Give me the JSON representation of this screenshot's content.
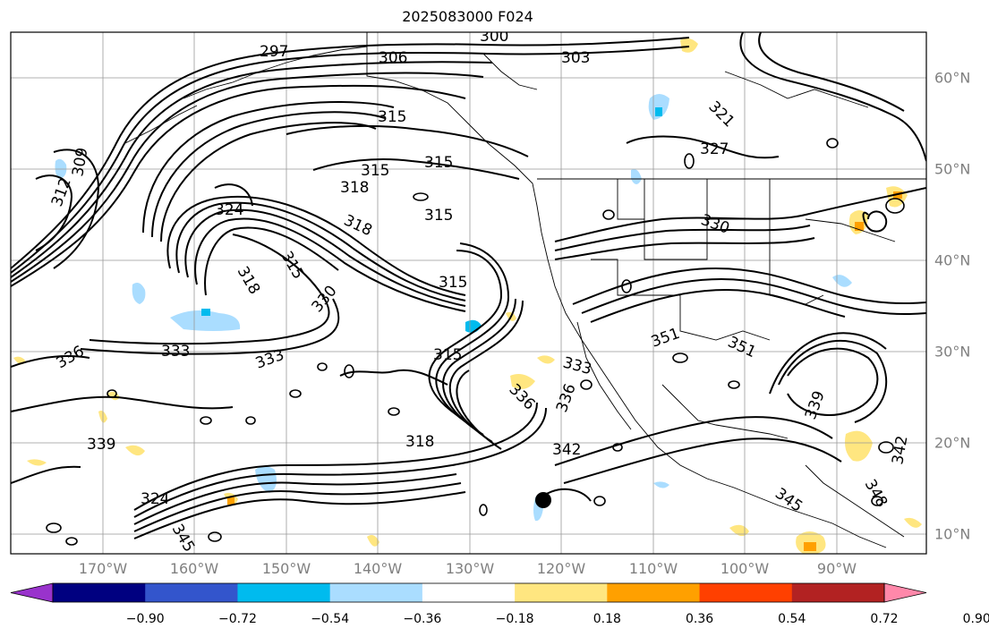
{
  "title": "2025083000 F024",
  "longitude_labels": [
    "170°W",
    "160°W",
    "150°W",
    "140°W",
    "130°W",
    "120°W",
    "110°W",
    "100°W",
    "90°W"
  ],
  "latitude_labels": [
    "60°N",
    "50°N",
    "40°N",
    "30°N",
    "20°N",
    "10°N"
  ],
  "contour_labels": [
    "297",
    "300",
    "303",
    "306",
    "309",
    "312",
    "315",
    "318",
    "321",
    "324",
    "327",
    "330",
    "333",
    "336",
    "339",
    "342",
    "345",
    "348",
    "351"
  ],
  "marker": {
    "name": "black-dot"
  },
  "colorbar": {
    "colors": [
      "#9933cc",
      "#000080",
      "#3355cc",
      "#00bbee",
      "#aaddff",
      "#ffffff",
      "#ffe680",
      "#ffa000",
      "#ff4000",
      "#b22222",
      "#ff88aa"
    ],
    "tick_labels": [
      "−0.90",
      "−0.72",
      "−0.54",
      "−0.36",
      "−0.18",
      "0.18",
      "0.36",
      "0.54",
      "0.72",
      "0.90"
    ]
  },
  "style": {
    "land_line": "#000000",
    "grid_line": "#999999",
    "contour": "#000000",
    "frame": "#000000"
  }
}
